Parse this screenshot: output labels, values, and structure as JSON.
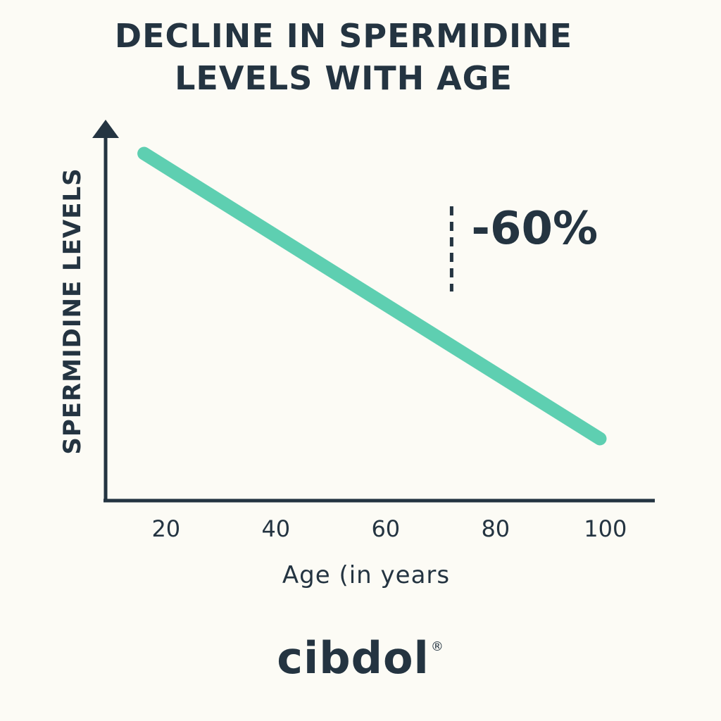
{
  "title": {
    "line1": "DECLINE IN SPERMIDINE",
    "line2": "LEVELS WITH AGE"
  },
  "chart_data": {
    "type": "line",
    "title": "DECLINE IN SPERMIDINE LEVELS WITH AGE",
    "xlabel": "Age (in years",
    "ylabel": "SPERMIDINE LEVELS",
    "x_ticks": [
      20,
      40,
      60,
      80,
      100
    ],
    "xlim": [
      9,
      109
    ],
    "ylim": [
      0,
      100
    ],
    "series": [
      {
        "x": [
          16,
          99
        ],
        "y": [
          100,
          20
        ]
      }
    ],
    "annotation": {
      "text": "-60%",
      "x": 72,
      "y_range": [
        55,
        75
      ]
    },
    "grid": false,
    "legend": "none",
    "colors": {
      "line": "#5ecfb1",
      "axis": "#243441",
      "background": "#fcfbf5"
    }
  },
  "brand": {
    "logo_text": "cibdol",
    "registered_mark": "®"
  }
}
